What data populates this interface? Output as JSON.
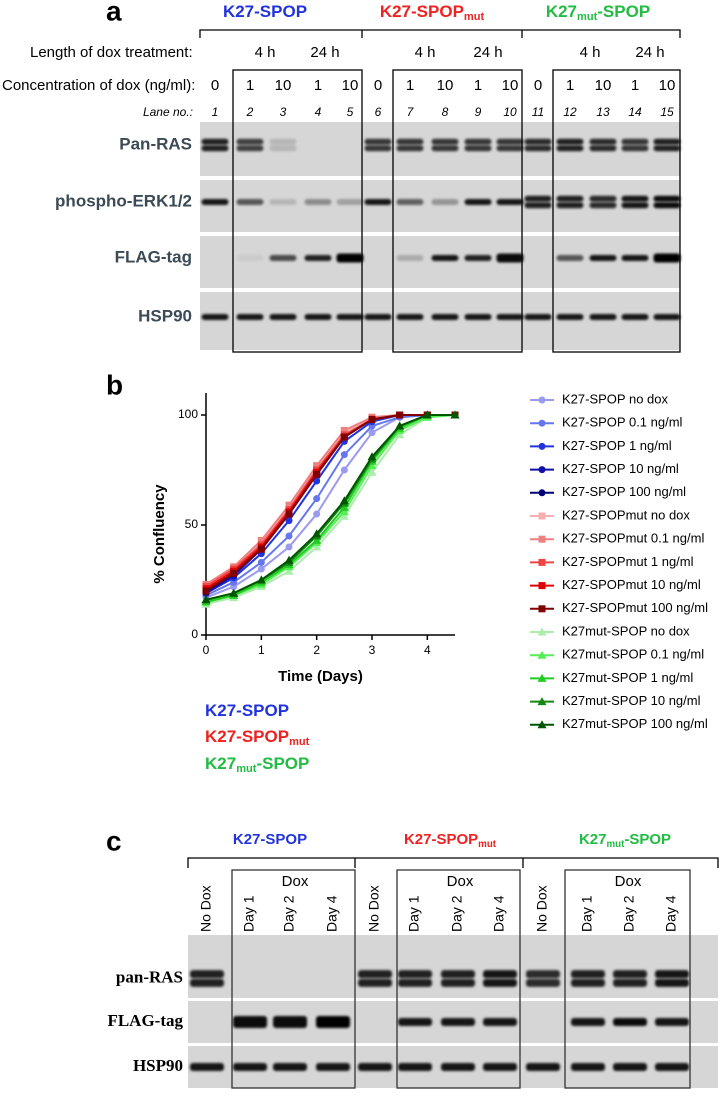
{
  "panel_a": {
    "letter": "a",
    "groups": [
      {
        "text": "K27-SPOP"
      },
      {
        "text": "K27-SPOP",
        "sub": "mut"
      },
      {
        "text": "K27",
        "sub": "mut",
        "after": "-SPOP"
      }
    ],
    "length_label": "Length of dox treatment:",
    "durations": [
      "4 h",
      "24 h",
      "4 h",
      "24 h",
      "4 h",
      "24 h"
    ],
    "concentration_label": "Concentration of dox (ng/ml):",
    "concentrations": [
      0,
      1,
      10,
      1,
      10,
      0,
      1,
      10,
      1,
      10,
      0,
      1,
      10,
      1,
      10
    ],
    "lane_label": "Lane no.:",
    "lanes": [
      1,
      2,
      3,
      4,
      5,
      6,
      7,
      8,
      9,
      10,
      11,
      12,
      13,
      14,
      15
    ],
    "blots": [
      "Pan-RAS",
      "phospho-ERK1/2",
      "FLAG-tag",
      "HSP90"
    ]
  },
  "chart_data": {
    "type": "line",
    "xlabel": "Time (Days)",
    "ylabel": "% Confluency",
    "x": [
      0,
      0.5,
      1,
      1.5,
      2,
      2.5,
      3,
      3.5,
      4,
      4.5
    ],
    "xlim": [
      0,
      4.5
    ],
    "xticks": [
      0,
      1,
      2,
      3,
      4
    ],
    "ylim": [
      0,
      110
    ],
    "yticks": [
      0,
      50,
      100
    ],
    "legend": "right",
    "series": [
      {
        "name": "K27-SPOP no dox",
        "color": "#9a9aee",
        "marker": "circle",
        "values": [
          17,
          22,
          30,
          40,
          55,
          75,
          92,
          99,
          100,
          100
        ]
      },
      {
        "name": "K27-SPOP 0.1 ng/ml",
        "color": "#6677ee",
        "marker": "circle",
        "values": [
          18,
          24,
          33,
          45,
          62,
          82,
          95,
          99,
          100,
          100
        ]
      },
      {
        "name": "K27-SPOP 1 ng/ml",
        "color": "#2233dd",
        "marker": "circle",
        "values": [
          19,
          26,
          37,
          52,
          70,
          88,
          97,
          100,
          100,
          100
        ]
      },
      {
        "name": "K27-SPOP 10 ng/ml",
        "color": "#1111aa",
        "marker": "circle",
        "values": [
          19,
          27,
          39,
          55,
          73,
          90,
          98,
          100,
          100,
          100
        ]
      },
      {
        "name": "K27-SPOP 100 ng/ml",
        "color": "#000077",
        "marker": "circle",
        "values": [
          20,
          28,
          40,
          56,
          74,
          90,
          98,
          100,
          100,
          100
        ]
      },
      {
        "name": "K27-SPOPmut no dox",
        "color": "#f4b0b0",
        "marker": "square",
        "values": [
          22,
          30,
          42,
          58,
          76,
          92,
          99,
          100,
          100,
          100
        ]
      },
      {
        "name": "K27-SPOPmut 0.1 ng/ml",
        "color": "#f08080",
        "marker": "square",
        "values": [
          23,
          31,
          43,
          59,
          77,
          93,
          99,
          100,
          100,
          100
        ]
      },
      {
        "name": "K27-SPOPmut 1 ng/ml",
        "color": "#ee4444",
        "marker": "square",
        "values": [
          22,
          30,
          41,
          57,
          75,
          91,
          98,
          100,
          100,
          100
        ]
      },
      {
        "name": "K27-SPOPmut 10 ng/ml",
        "color": "#e00000",
        "marker": "square",
        "values": [
          21,
          29,
          40,
          56,
          74,
          90,
          98,
          100,
          100,
          100
        ]
      },
      {
        "name": "K27-SPOPmut 100 ng/ml",
        "color": "#800000",
        "marker": "square",
        "values": [
          20,
          28,
          39,
          55,
          73,
          90,
          98,
          100,
          100,
          100
        ]
      },
      {
        "name": "K27mut-SPOP no dox",
        "color": "#aaeeaa",
        "marker": "triangle",
        "values": [
          14,
          17,
          22,
          29,
          40,
          54,
          74,
          91,
          99,
          100
        ]
      },
      {
        "name": "K27mut-SPOP 0.1 ng/ml",
        "color": "#55ee55",
        "marker": "triangle",
        "values": [
          15,
          18,
          23,
          31,
          42,
          56,
          77,
          93,
          99,
          100
        ]
      },
      {
        "name": "K27mut-SPOP 1 ng/ml",
        "color": "#22cc22",
        "marker": "triangle",
        "values": [
          15,
          18,
          24,
          32,
          43,
          58,
          79,
          94,
          100,
          100
        ]
      },
      {
        "name": "K27mut-SPOP 10 ng/ml",
        "color": "#118811",
        "marker": "triangle",
        "values": [
          16,
          19,
          25,
          33,
          45,
          60,
          80,
          95,
          100,
          100
        ]
      },
      {
        "name": "K27mut-SPOP 100 ng/ml",
        "color": "#005500",
        "marker": "triangle",
        "values": [
          16,
          19,
          25,
          34,
          46,
          61,
          81,
          95,
          100,
          100
        ]
      }
    ]
  },
  "panel_b_key": {
    "letter": "b",
    "items": [
      {
        "text": "K27-SPOP"
      },
      {
        "text": "K27-SPOP",
        "sub": "mut"
      },
      {
        "text": "K27",
        "sub": "mut",
        "after": "-SPOP"
      }
    ]
  },
  "panel_c": {
    "letter": "c",
    "groups": [
      {
        "text": "K27-SPOP"
      },
      {
        "text": "K27-SPOP",
        "sub": "mut"
      },
      {
        "text": "K27",
        "sub": "mut",
        "after": "-SPOP"
      }
    ],
    "dox": [
      "Dox",
      "Dox",
      "Dox"
    ],
    "lanes": [
      "No Dox",
      "Day 1",
      "Day 2",
      "Day 4",
      "No Dox",
      "Day 1",
      "Day 2",
      "Day 4",
      "No Dox",
      "Day 1",
      "Day 2",
      "Day 4"
    ],
    "blots": [
      "pan-RAS",
      "FLAG-tag",
      "HSP90"
    ]
  }
}
